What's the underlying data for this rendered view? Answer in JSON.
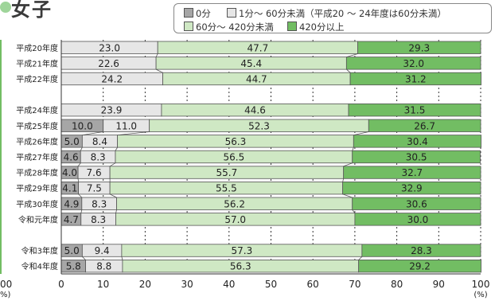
{
  "title": "女子",
  "colors": {
    "c0": "#a6a6a6",
    "c1": "#e6e6e6",
    "c2": "#cfe8c4",
    "c3": "#72bd63",
    "title_dot": "#9fd59a"
  },
  "chart_data": {
    "type": "bar",
    "orientation": "horizontal",
    "stacked": true,
    "categories": [
      "平成20年度",
      "平成21年度",
      "平成22年度",
      "",
      "平成24年度",
      "平成25年度",
      "平成26年度",
      "平成27年度",
      "平成28年度",
      "平成29年度",
      "平成30年度",
      "令和元年度",
      "",
      "令和3年度",
      "令和4年度"
    ],
    "series": [
      {
        "name": "0分",
        "color": "#a6a6a6",
        "values": [
          null,
          null,
          null,
          null,
          null,
          10.0,
          5.0,
          4.6,
          4.0,
          4.1,
          4.9,
          4.7,
          null,
          5.0,
          5.8
        ]
      },
      {
        "name": "1分～ 60分未満（平成20 ～ 24年度は60分未満）",
        "color": "#e6e6e6",
        "values": [
          23.0,
          22.6,
          24.2,
          null,
          23.9,
          11.0,
          8.4,
          8.3,
          7.6,
          7.5,
          8.3,
          8.3,
          null,
          9.4,
          8.8
        ]
      },
      {
        "name": "60分～ 420分未満",
        "color": "#cfe8c4",
        "values": [
          47.7,
          45.4,
          44.7,
          null,
          44.6,
          52.3,
          56.3,
          56.5,
          55.7,
          55.5,
          56.2,
          57.0,
          null,
          57.3,
          56.3
        ]
      },
      {
        "name": "420分以上",
        "color": "#72bd63",
        "values": [
          29.3,
          32.0,
          31.2,
          null,
          31.5,
          26.7,
          30.4,
          30.5,
          32.7,
          32.9,
          30.6,
          30.0,
          null,
          28.3,
          29.2
        ]
      }
    ],
    "xlim": [
      0,
      100
    ],
    "xticks": [
      "0",
      "10",
      "20",
      "30",
      "40",
      "50",
      "60",
      "70",
      "80",
      "90",
      "100"
    ],
    "xunit": "(%)",
    "left_tick_fragments": [
      "00",
      "%)"
    ],
    "grid": true,
    "legend": "top-right"
  }
}
